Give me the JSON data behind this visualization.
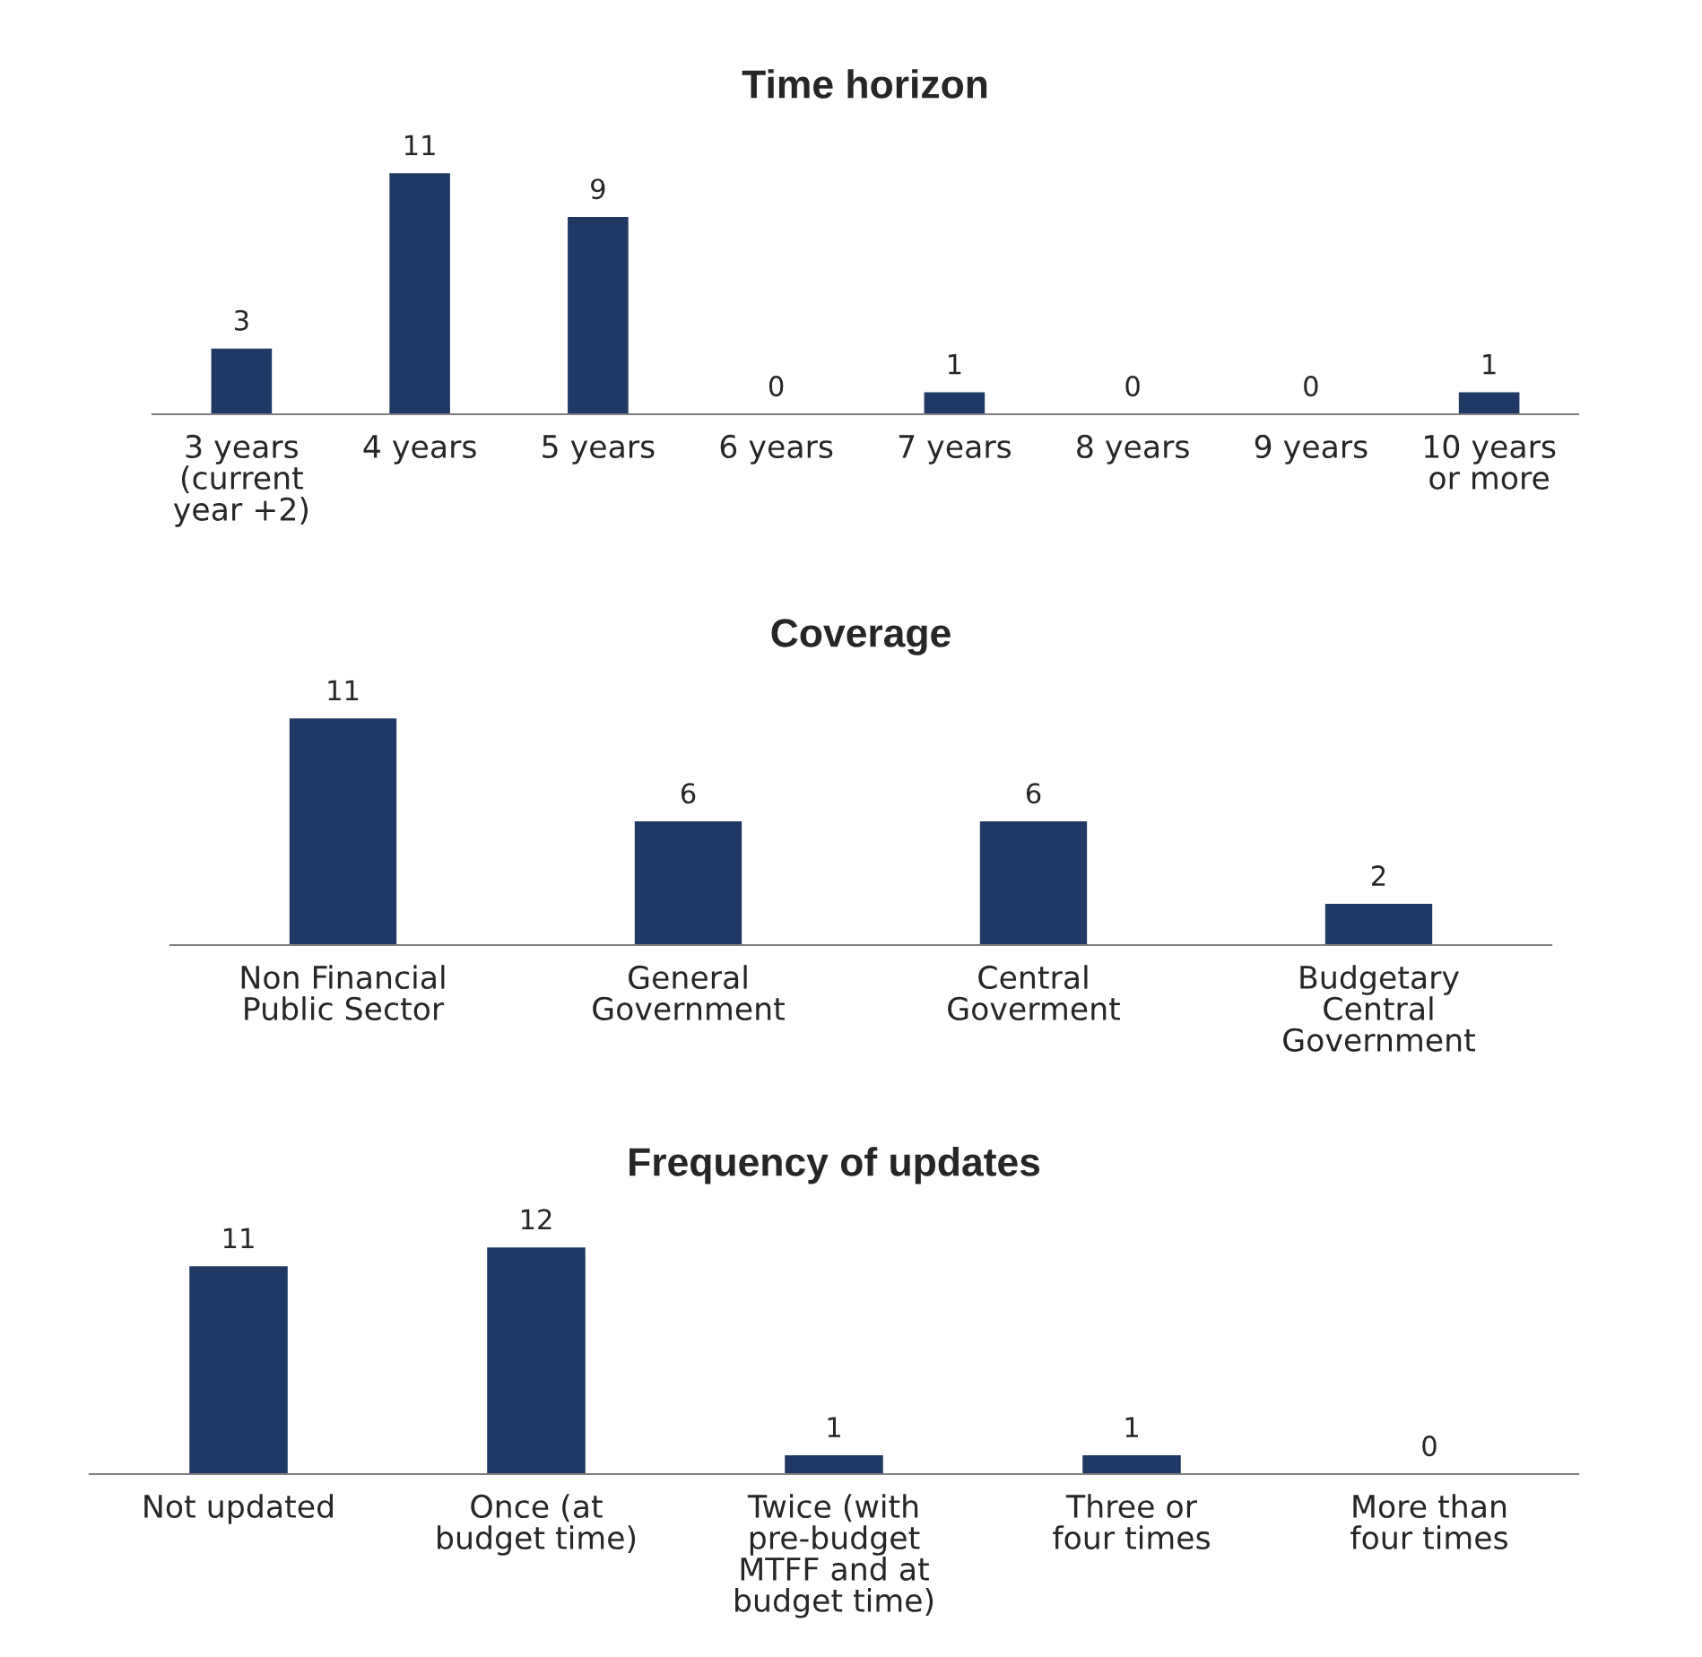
{
  "chart_data": [
    {
      "type": "bar",
      "title": "Time horizon",
      "categories": [
        "3 years\n(current\nyear +2)",
        "4 years",
        "5 years",
        "6 years",
        "7 years",
        "8 years",
        "9 years",
        "10 years\nor more"
      ],
      "values": [
        3,
        11,
        9,
        0,
        1,
        0,
        0,
        1
      ],
      "color": "#1f3864",
      "data_labels": true
    },
    {
      "type": "bar",
      "title": "Coverage",
      "categories": [
        "Non Financial\nPublic Sector",
        "General\nGovernment",
        "Central\nGoverment",
        "Budgetary\nCentral\nGovernment"
      ],
      "values": [
        11,
        6,
        6,
        2
      ],
      "color": "#1f3864",
      "data_labels": true
    },
    {
      "type": "bar",
      "title": "Frequency of updates",
      "categories": [
        "Not updated",
        "Once (at\nbudget time)",
        "Twice (with\npre-budget\nMTFF and at\nbudget time)",
        "Three or\nfour times",
        "More than\nfour times"
      ],
      "values": [
        11,
        12,
        1,
        1,
        0
      ],
      "color": "#1f3864",
      "data_labels": true
    }
  ]
}
